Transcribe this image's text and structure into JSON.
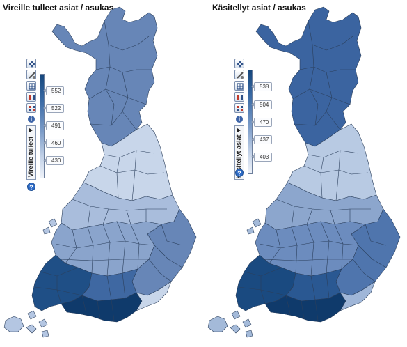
{
  "maps": [
    {
      "title": "Vireille tulleet asiat / asukas",
      "variable_label": "Vireille tulleet",
      "legend_ticks": [
        "552",
        "522",
        "491",
        "460",
        "430"
      ],
      "colors": {
        "dark": "#16477c",
        "mid": "#5b80b4",
        "light": "#c8d6ea",
        "lightest": "#e6edf7"
      },
      "region_shades": {
        "north": "mid",
        "central": "light",
        "east": "mid",
        "southwest": "dark",
        "capital": "dark"
      }
    },
    {
      "title": "Käsitellyt asiat / asukas",
      "variable_label": "Käsitellyt asiat",
      "legend_ticks": [
        "538",
        "504",
        "470",
        "437",
        "403"
      ],
      "colors": {
        "dark": "#16477c",
        "mid": "#3f68a2",
        "light": "#b8cae3",
        "lightest": "#e6edf7"
      },
      "region_shades": {
        "north": "mid",
        "central": "light",
        "east": "mid",
        "southwest": "dark",
        "capital": "dark"
      }
    }
  ],
  "toolbar": {
    "tools": [
      "pan-icon",
      "measure-icon",
      "layer-icon",
      "filter-icon",
      "palette-icon"
    ],
    "info_label": "i",
    "help_label": "?"
  }
}
